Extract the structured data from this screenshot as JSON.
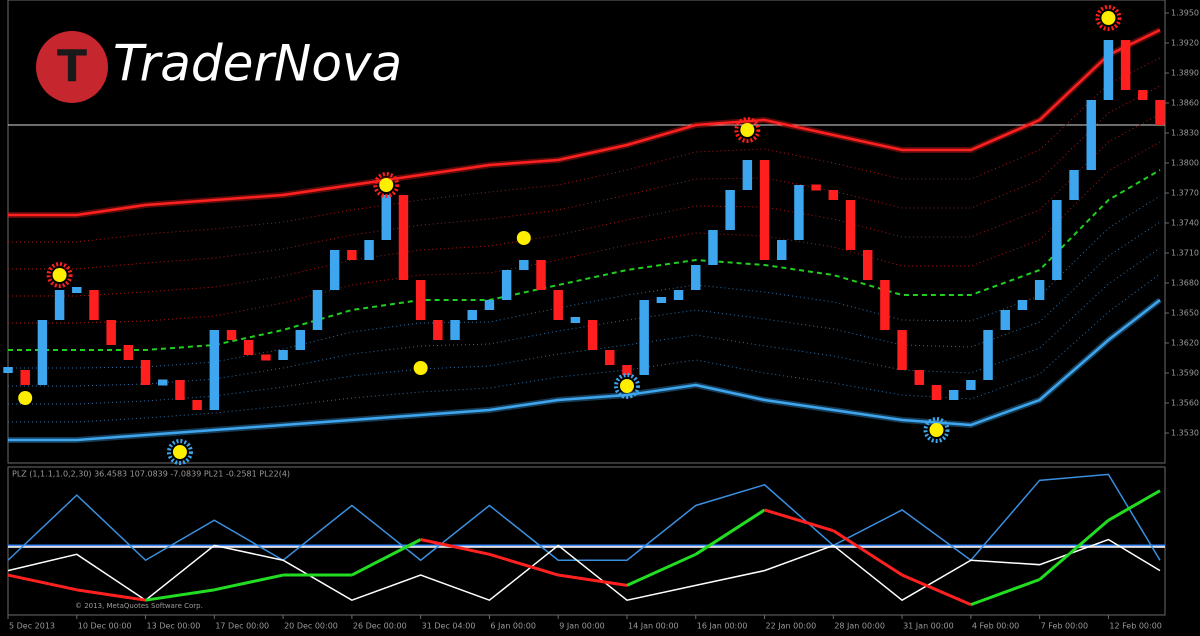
{
  "brand": {
    "letter": "T",
    "name": "TraderNova"
  },
  "chart_data": [
    {
      "type": "bar",
      "categories": [
        "5 Dec 2013",
        null,
        null,
        null,
        "10 Dec 00:00",
        null,
        null,
        null,
        "13 Dec 00:00",
        null,
        null,
        null,
        "17 Dec 00:00",
        null,
        null,
        null,
        "20 Dec 00:00",
        null,
        null,
        null,
        "26 Dec 00:00",
        null,
        null,
        null,
        "31 Dec 04:00",
        null,
        null,
        null,
        "6 Jan 00:00",
        null,
        null,
        null,
        "9 Jan 00:00",
        null,
        null,
        null,
        "14 Jan 00:00",
        null,
        null,
        null,
        "16 Jan 00:00",
        null,
        null,
        null,
        "22 Jan 00:00",
        null,
        null,
        null,
        "28 Jan 00:00",
        null,
        null,
        null,
        "31 Jan 00:00",
        null,
        null,
        null,
        "4 Feb 00:00",
        null,
        null,
        null,
        "7 Feb 00:00",
        null,
        null,
        null,
        "12 Feb 00:00",
        null,
        null,
        null
      ],
      "values": [
        1.3593,
        1.3578,
        1.3643,
        1.3673,
        1.3673,
        1.3643,
        1.3618,
        1.3603,
        1.3578,
        1.3583,
        1.3563,
        1.3553,
        1.3633,
        1.3623,
        1.3608,
        1.3603,
        1.3613,
        1.3633,
        1.3673,
        1.3713,
        1.3703,
        1.3723,
        1.3768,
        1.3683,
        1.3643,
        1.3623,
        1.3643,
        1.3653,
        1.3663,
        1.3693,
        1.3703,
        1.3673,
        1.3643,
        1.3643,
        1.3613,
        1.3598,
        1.3588,
        1.3663,
        1.3663,
        1.3673,
        1.3698,
        1.3733,
        1.3773,
        1.3803,
        1.3703,
        1.3723,
        1.3778,
        1.3773,
        1.3763,
        1.3713,
        1.3683,
        1.3633,
        1.3593,
        1.3578,
        1.3563,
        1.3573,
        1.3583,
        1.3633,
        1.3653,
        1.3663,
        1.3683,
        1.3763,
        1.3793,
        1.3863,
        1.3923,
        1.3873,
        1.3863,
        1.3838
      ],
      "colors": {
        "up": "#3ea6ee",
        "down": "#ff1f1f"
      },
      "ylim": [
        1.35,
        1.3963
      ],
      "yticks": [
        {
          "value": 1.353,
          "label": "1.3530"
        },
        {
          "value": 1.356,
          "label": "1.3560"
        },
        {
          "value": 1.359,
          "label": "1.3590"
        },
        {
          "value": 1.362,
          "label": "1.3620"
        },
        {
          "value": 1.365,
          "label": "1.3650"
        },
        {
          "value": 1.368,
          "label": "1.3680"
        },
        {
          "value": 1.371,
          "label": "1.3710"
        },
        {
          "value": 1.374,
          "label": "1.3740"
        },
        {
          "value": 1.377,
          "label": "1.3770"
        },
        {
          "value": 1.38,
          "label": "1.3800"
        },
        {
          "value": 1.383,
          "label": "1.3830"
        },
        {
          "value": 1.386,
          "label": "1.3860"
        },
        {
          "value": 1.389,
          "label": "1.3890"
        },
        {
          "value": 1.392,
          "label": "1.3920"
        },
        {
          "value": 1.395,
          "label": "1.3950"
        }
      ],
      "level": {
        "value": 1.3838,
        "color": "#d8d8d8"
      },
      "bands": [
        {
          "color": "#ff2020",
          "x": [
            0,
            4,
            8,
            12,
            16,
            20,
            24,
            28,
            32,
            36,
            40,
            44,
            48,
            52,
            56,
            60,
            64,
            67
          ],
          "values": [
            1.3748,
            1.3748,
            1.3758,
            1.3763,
            1.3768,
            1.3778,
            1.3788,
            1.3798,
            1.3803,
            1.3818,
            1.3838,
            1.3843,
            1.3828,
            1.3813,
            1.3813,
            1.3843,
            1.3908,
            1.3933
          ]
        },
        {
          "color": "#3ea6ee",
          "x": [
            0,
            4,
            8,
            12,
            16,
            20,
            24,
            28,
            32,
            36,
            40,
            44,
            48,
            52,
            56,
            60,
            64,
            67
          ],
          "values": [
            1.3523,
            1.3523,
            1.3528,
            1.3533,
            1.3538,
            1.3543,
            1.3548,
            1.3553,
            1.3563,
            1.3568,
            1.3578,
            1.3563,
            1.3553,
            1.3543,
            1.3538,
            1.3563,
            1.3623,
            1.3663
          ]
        },
        {
          "color": "#1fd01f",
          "dash": true,
          "x": [
            0,
            4,
            8,
            12,
            16,
            20,
            24,
            28,
            32,
            36,
            40,
            44,
            48,
            52,
            56,
            60,
            64,
            67
          ],
          "values": [
            1.3613,
            1.3613,
            1.3613,
            1.3618,
            1.3633,
            1.3653,
            1.3663,
            1.3663,
            1.3678,
            1.3693,
            1.3703,
            1.3698,
            1.3688,
            1.3668,
            1.3668,
            1.3693,
            1.3763,
            1.3793
          ]
        }
      ],
      "signals": {
        "x": [
          1,
          3,
          10,
          22,
          24,
          30,
          36,
          43,
          54,
          64
        ],
        "y": [
          1.3565,
          1.3688,
          1.3511,
          1.3778,
          1.3595,
          1.3725,
          1.3577,
          1.3833,
          1.3533,
          1.3945
        ],
        "style": [
          "dot",
          "top",
          "bottom",
          "top",
          "dot",
          "dot",
          "bottom",
          "top",
          "bottom",
          "top"
        ]
      }
    },
    {
      "type": "line",
      "label": "PLZ (1,1.1,1.0,2,30) 36.4583 107.0839 -7.0839 PL21 -0.2581 PL22(4)",
      "copyright": "© 2013, MetaQuotes Software Corp.",
      "x": [
        0,
        4,
        8,
        12,
        16,
        20,
        24,
        28,
        32,
        36,
        40,
        44,
        48,
        52,
        56,
        60,
        64,
        67
      ],
      "ylim": [
        0,
        100
      ],
      "levels": [
        {
          "value": 47,
          "color": "#2a7fff"
        },
        {
          "value": 46,
          "color": "#dddddd"
        }
      ],
      "series": [
        {
          "color": "#3a8fe0",
          "values": [
            37,
            81,
            37,
            64,
            37,
            74,
            37,
            74,
            37,
            37,
            74,
            88,
            47,
            71,
            37,
            91,
            95,
            37
          ]
        },
        {
          "color": "#ffffff",
          "values": [
            30,
            41,
            10,
            47,
            37,
            10,
            27,
            10,
            47,
            10,
            20,
            30,
            47,
            10,
            37,
            34,
            51,
            30
          ]
        },
        {
          "colors": {
            "up": "#22dd22",
            "down": "#ff2020"
          },
          "values": [
            27,
            17,
            10,
            17,
            27,
            27,
            51,
            41,
            27,
            20,
            41,
            71,
            57,
            27,
            7,
            24,
            64,
            84
          ]
        }
      ]
    }
  ]
}
